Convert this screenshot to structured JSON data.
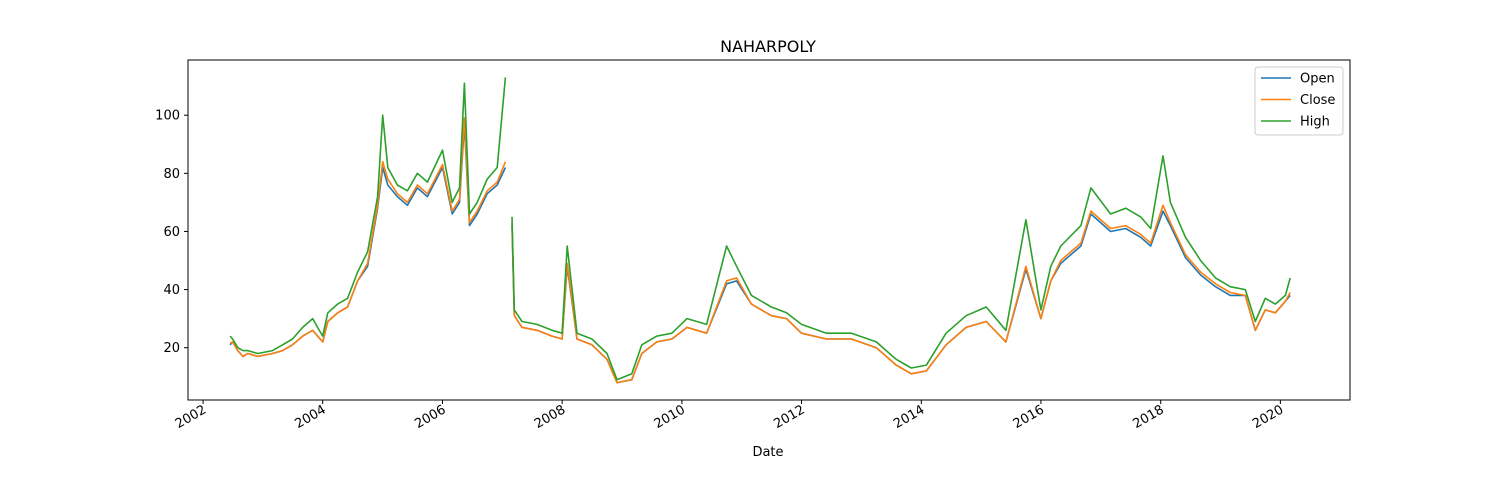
{
  "chart_data": {
    "type": "line",
    "title": "NAHARPOLY",
    "xlabel": "Date",
    "ylabel": "",
    "xlim": [
      "2001-10-01",
      "2021-03-01"
    ],
    "ylim": [
      2,
      119
    ],
    "x_ticks": [
      "2002",
      "2004",
      "2006",
      "2008",
      "2010",
      "2012",
      "2014",
      "2016",
      "2018",
      "2020"
    ],
    "y_ticks": [
      20,
      40,
      60,
      80,
      100
    ],
    "grid": false,
    "legend": "top-right",
    "gaps": [
      [
        "2007-01-20",
        "2007-03-01"
      ]
    ],
    "x": [
      "2002-06-15",
      "2002-07-01",
      "2002-08-01",
      "2002-09-01",
      "2002-10-01",
      "2002-12-01",
      "2003-03-01",
      "2003-05-01",
      "2003-07-01",
      "2003-09-01",
      "2003-11-01",
      "2003-12-01",
      "2004-01-01",
      "2004-02-01",
      "2004-04-01",
      "2004-06-01",
      "2004-08-01",
      "2004-10-01",
      "2004-12-01",
      "2005-01-01",
      "2005-02-01",
      "2005-04-01",
      "2005-06-01",
      "2005-08-01",
      "2005-10-01",
      "2006-01-01",
      "2006-03-01",
      "2006-04-15",
      "2006-05-15",
      "2006-06-15",
      "2006-08-01",
      "2006-10-01",
      "2006-12-01",
      "2007-01-20",
      "2007-03-01",
      "2007-03-15",
      "2007-05-01",
      "2007-08-01",
      "2007-11-01",
      "2008-01-01",
      "2008-02-01",
      "2008-04-01",
      "2008-07-01",
      "2008-10-01",
      "2008-12-01",
      "2009-03-01",
      "2009-05-01",
      "2009-08-01",
      "2009-11-01",
      "2010-02-01",
      "2010-06-01",
      "2010-10-01",
      "2010-12-01",
      "2011-03-01",
      "2011-07-01",
      "2011-10-01",
      "2012-01-01",
      "2012-06-01",
      "2012-11-01",
      "2013-04-01",
      "2013-08-01",
      "2013-11-01",
      "2014-02-01",
      "2014-06-01",
      "2014-10-01",
      "2015-02-01",
      "2015-06-01",
      "2015-10-01",
      "2016-01-01",
      "2016-03-01",
      "2016-05-01",
      "2016-09-01",
      "2016-11-01",
      "2017-03-01",
      "2017-06-01",
      "2017-09-01",
      "2017-11-01",
      "2018-01-15",
      "2018-03-01",
      "2018-06-01",
      "2018-09-01",
      "2018-12-01",
      "2019-03-01",
      "2019-06-01",
      "2019-08-01",
      "2019-10-01",
      "2019-12-01",
      "2020-02-01",
      "2020-03-01"
    ],
    "series": [
      {
        "name": "Open",
        "color": "#1f77b4",
        "values": [
          21,
          22,
          19,
          17,
          18,
          17,
          18,
          19,
          21,
          24,
          26,
          24,
          22,
          29,
          32,
          34,
          43,
          48,
          68,
          82,
          76,
          72,
          69,
          75,
          72,
          82,
          66,
          70,
          97,
          62,
          66,
          73,
          76,
          82,
          62,
          31,
          27,
          26,
          24,
          23,
          48,
          23,
          21,
          16,
          8,
          9,
          18,
          22,
          23,
          27,
          25,
          42,
          43,
          35,
          31,
          30,
          25,
          23,
          23,
          20,
          14,
          11,
          12,
          21,
          27,
          29,
          22,
          47,
          30,
          43,
          49,
          55,
          66,
          60,
          61,
          58,
          55,
          67,
          62,
          51,
          45,
          41,
          38,
          38,
          26,
          33,
          32,
          36,
          38
        ]
      },
      {
        "name": "Close",
        "color": "#ff7f0e",
        "values": [
          21.5,
          22,
          19,
          17,
          18,
          17,
          18,
          19,
          21,
          24,
          26,
          24,
          22,
          29,
          32,
          34,
          43,
          49,
          69,
          84,
          78,
          73,
          70,
          76,
          73,
          83,
          67,
          71,
          99,
          63,
          67,
          74,
          77,
          84,
          63,
          31,
          27,
          26,
          24,
          23,
          49,
          23,
          21,
          16,
          8,
          9,
          18,
          22,
          23,
          27,
          25,
          43,
          44,
          35,
          31,
          30,
          25,
          23,
          23,
          20,
          14,
          11,
          12,
          21,
          27,
          29,
          22,
          48,
          30,
          43,
          50,
          56,
          67,
          61,
          62,
          59,
          56,
          69,
          63,
          52,
          46,
          42,
          39,
          38,
          26,
          33,
          32,
          36,
          39
        ]
      },
      {
        "name": "High",
        "color": "#2ca02c",
        "values": [
          24,
          23,
          20,
          19,
          19,
          18,
          19,
          21,
          23,
          27,
          30,
          27,
          24,
          32,
          35,
          37,
          46,
          53,
          72,
          100,
          82,
          76,
          74,
          80,
          77,
          88,
          70,
          75,
          111,
          66,
          70,
          78,
          82,
          113,
          65,
          33,
          29,
          28,
          26,
          25,
          55,
          25,
          23,
          18,
          9,
          11,
          21,
          24,
          25,
          30,
          28,
          55,
          48,
          38,
          34,
          32,
          28,
          25,
          25,
          22,
          16,
          13,
          14,
          25,
          31,
          34,
          26,
          64,
          33,
          48,
          55,
          62,
          75,
          66,
          68,
          65,
          61,
          86,
          70,
          58,
          50,
          44,
          41,
          40,
          29,
          37,
          35,
          38,
          44
        ]
      }
    ]
  }
}
